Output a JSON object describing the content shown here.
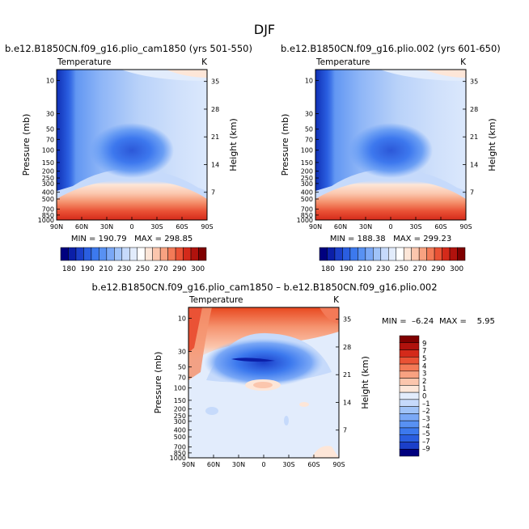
{
  "chart_data": {
    "title": "DJF",
    "panels": [
      {
        "type": "heatmap",
        "subtitle": "b.e12.B1850CN.f09_g16.plio_cam1850 (yrs 501-550)",
        "variable": "Temperature",
        "units": "K",
        "ylabel_left": "Pressure (mb)",
        "ylabel_right": "Height (km)",
        "xticks": [
          "90N",
          "60N",
          "30N",
          "0",
          "30S",
          "60S",
          "90S"
        ],
        "pressure_ticks": [
          "10",
          "30",
          "50",
          "70",
          "100",
          "150",
          "200",
          "250",
          "300",
          "400",
          "500",
          "700",
          "850",
          "1000"
        ],
        "height_ticks": [
          "35",
          "28",
          "21",
          "14",
          "7"
        ],
        "stats": "MIN = 190.79   MAX = 298.85",
        "min": 190.79,
        "max": 298.85
      },
      {
        "type": "heatmap",
        "subtitle": "b.e12.B1850CN.f09_g16.plio.002 (yrs 601-650)",
        "variable": "Temperature",
        "units": "K",
        "ylabel_left": "Pressure (mb)",
        "ylabel_right": "Height (km)",
        "xticks": [
          "90N",
          "60N",
          "30N",
          "0",
          "30S",
          "60S",
          "90S"
        ],
        "pressure_ticks": [
          "10",
          "30",
          "50",
          "70",
          "100",
          "150",
          "200",
          "250",
          "300",
          "400",
          "500",
          "700",
          "850",
          "1000"
        ],
        "height_ticks": [
          "35",
          "28",
          "21",
          "14",
          "7"
        ],
        "stats": "MIN = 188.38   MAX = 299.23",
        "min": 188.38,
        "max": 299.23
      },
      {
        "type": "heatmap",
        "subtitle": "b.e12.B1850CN.f09_g16.plio_cam1850 – b.e12.B1850CN.f09_g16.plio.002",
        "variable": "Temperature",
        "units": "K",
        "ylabel_left": "Pressure (mb)",
        "ylabel_right": "Height (km)",
        "xticks": [
          "90N",
          "60N",
          "30N",
          "0",
          "30S",
          "60S",
          "90S"
        ],
        "pressure_ticks": [
          "10",
          "30",
          "50",
          "70",
          "100",
          "150",
          "200",
          "250",
          "300",
          "400",
          "500",
          "700",
          "850",
          "1000"
        ],
        "height_ticks": [
          "35",
          "28",
          "21",
          "14",
          "7"
        ],
        "stats_min": "MIN =  –6.24",
        "stats_max": "MAX =    5.95",
        "min": -6.24,
        "max": 5.95
      }
    ],
    "colorbar_abs": {
      "levels": [
        "180",
        "190",
        "200",
        "210",
        "220",
        "230",
        "240",
        "250",
        "260",
        "270",
        "280",
        "290",
        "300"
      ],
      "labels": [
        "180",
        "190",
        "210",
        "230",
        "250",
        "270",
        "290",
        "300"
      ],
      "colors": [
        "#00007f",
        "#0b1fa8",
        "#1b3fc9",
        "#2a5ee0",
        "#3c79ee",
        "#5891f3",
        "#7aa8f6",
        "#a0c3f8",
        "#c6dafb",
        "#e2ecfc",
        "#ffffff",
        "#fde6d8",
        "#fbc6ad",
        "#f8a281",
        "#f37a57",
        "#ea5235",
        "#d42a1a",
        "#b0120d",
        "#7f0000"
      ]
    },
    "colorbar_diff": {
      "levels": [
        "9",
        "7",
        "5",
        "4",
        "3",
        "2",
        "1",
        "0",
        "–1",
        "–2",
        "–3",
        "–4",
        "–5",
        "–7",
        "–9"
      ],
      "colors": [
        "#7f0000",
        "#b0120d",
        "#d42a1a",
        "#ea5235",
        "#f37a57",
        "#f8a281",
        "#fbc6ad",
        "#fde6d8",
        "#e2ecfc",
        "#c6dafb",
        "#a0c3f8",
        "#7aa8f6",
        "#5891f3",
        "#3c79ee",
        "#2a5ee0",
        "#1b3fc9",
        "#00007f"
      ]
    }
  }
}
